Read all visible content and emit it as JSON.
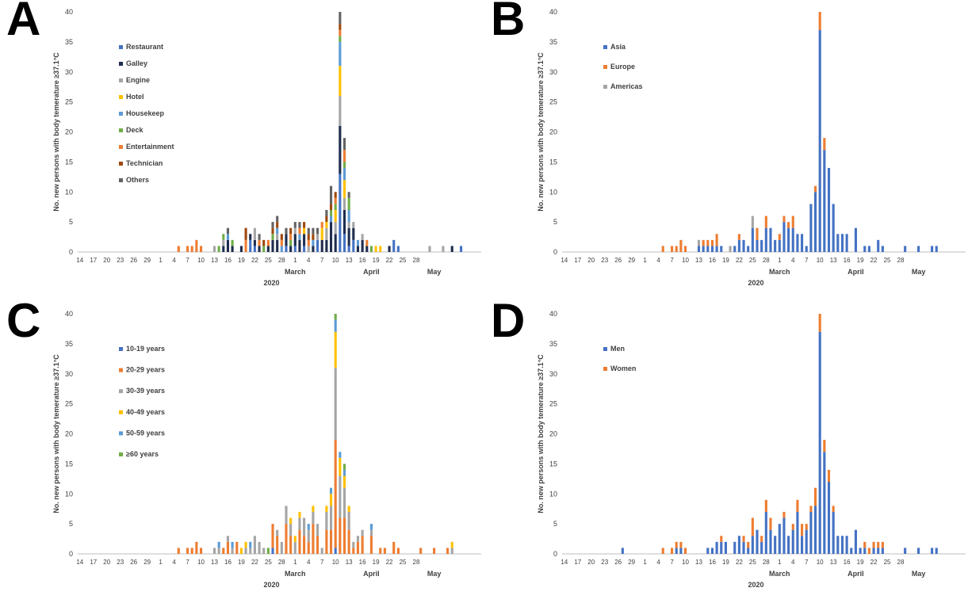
{
  "colors": {
    "blue": "#4472C4",
    "orange": "#ED7D31",
    "gray": "#A5A5A5",
    "yellow": "#FFC000",
    "lightblue": "#5B9BD5",
    "green": "#70AD47",
    "navy": "#1F2D4E",
    "rust": "#9E480E",
    "darkgray": "#636363"
  },
  "chart_data": [
    {
      "panel": "A",
      "type": "bar",
      "stacked": true,
      "ylabel": "No.  new persons with body temerature ≥37.1°C",
      "xlabel": "2020",
      "ylim": [
        0,
        40
      ],
      "yticks": [
        0,
        5,
        10,
        15,
        20,
        25,
        30,
        35,
        40
      ],
      "xticks": [
        "14",
        "17",
        "20",
        "23",
        "26",
        "29",
        "1",
        "4",
        "7",
        "10",
        "13",
        "16",
        "19",
        "22",
        "25",
        "28",
        "1",
        "4",
        "7",
        "10",
        "13",
        "16",
        "19",
        "22",
        "25",
        "28"
      ],
      "months": [
        "March",
        "April",
        "May"
      ],
      "legend": {
        "placement": "left"
      },
      "series": [
        {
          "name": "Restaurant",
          "color": "#4472C4",
          "values": {
            "38": 2,
            "39": 1,
            "46": 1,
            "48": 1,
            "50": 1,
            "53": 2,
            "58": 13,
            "59": 3,
            "60": 1,
            "61": 2,
            "70": 2,
            "71": 1,
            "85": 1
          }
        },
        {
          "name": "Galley",
          "color": "#1F2D4E",
          "values": {
            "32": 1,
            "33": 2,
            "34": 1,
            "36": 1,
            "38": 1,
            "39": 1,
            "40": 1,
            "42": 1,
            "43": 2,
            "44": 2,
            "46": 2,
            "47": 1,
            "48": 2,
            "49": 2,
            "50": 2,
            "52": 1,
            "54": 2,
            "55": 2,
            "56": 5,
            "57": 3,
            "58": 8,
            "59": 4,
            "60": 3,
            "61": 2,
            "62": 1,
            "63": 2,
            "64": 1,
            "69": 1,
            "83": 1
          }
        },
        {
          "name": "Engine",
          "color": "#A5A5A5",
          "values": {
            "30": 1,
            "32": 1,
            "39": 2,
            "44": 1,
            "48": 1,
            "51": 1,
            "53": 1,
            "55": 2,
            "57": 2,
            "58": 5,
            "59": 2,
            "60": 1,
            "61": 1,
            "63": 1,
            "78": 1,
            "81": 1
          }
        },
        {
          "name": "Hotel",
          "color": "#FFC000",
          "values": {
            "50": 1,
            "54": 2,
            "55": 1,
            "57": 2,
            "58": 5,
            "59": 3,
            "66": 1,
            "67": 1
          }
        },
        {
          "name": "Housekeep",
          "color": "#5B9BD5",
          "values": {
            "33": 1,
            "44": 1,
            "45": 1,
            "49": 1,
            "52": 1,
            "56": 1,
            "58": 4,
            "59": 2,
            "60": 2,
            "62": 1
          }
        },
        {
          "name": "Deck",
          "color": "#70AD47",
          "values": {
            "31": 1,
            "32": 1,
            "34": 1,
            "41": 1,
            "43": 1,
            "47": 1,
            "56": 1,
            "57": 1,
            "58": 1,
            "59": 1,
            "60": 2,
            "65": 1
          }
        },
        {
          "name": "Entertainment",
          "color": "#ED7D31",
          "values": {
            "22": 1,
            "24": 1,
            "25": 1,
            "26": 2,
            "27": 1,
            "37": 2,
            "40": 1,
            "42": 1,
            "45": 1,
            "47": 1,
            "49": 1,
            "51": 1,
            "54": 1,
            "57": 1,
            "58": 1,
            "59": 2,
            "64": 1
          }
        },
        {
          "name": "Technician",
          "color": "#9E480E",
          "values": {
            "37": 2,
            "41": 1,
            "43": 1,
            "44": 1,
            "45": 1,
            "47": 1,
            "50": 1,
            "51": 1,
            "52": 1,
            "55": 1,
            "56": 1,
            "57": 1,
            "58": 1
          }
        },
        {
          "name": "Others",
          "color": "#636363",
          "values": {
            "33": 1,
            "40": 1,
            "43": 1,
            "44": 1,
            "46": 1,
            "48": 1,
            "49": 1,
            "51": 1,
            "52": 1,
            "53": 1,
            "55": 1,
            "56": 3,
            "58": 2,
            "59": 2,
            "60": 1
          }
        }
      ]
    },
    {
      "panel": "B",
      "type": "bar",
      "stacked": true,
      "ylabel": "No.  new persons with body temerature ≥37.1°C",
      "xlabel": "2020",
      "ylim": [
        0,
        40
      ],
      "yticks": [
        0,
        5,
        10,
        15,
        20,
        25,
        30,
        35,
        40
      ],
      "xticks": [
        "14",
        "17",
        "20",
        "23",
        "26",
        "29",
        "1",
        "4",
        "7",
        "10",
        "13",
        "16",
        "19",
        "22",
        "25",
        "28",
        "1",
        "4",
        "7",
        "10",
        "13",
        "16",
        "19",
        "22",
        "25",
        "28"
      ],
      "months": [
        "March",
        "April",
        "May"
      ],
      "legend": {
        "placement": "left"
      },
      "series": [
        {
          "name": "Asia",
          "color": "#4472C4",
          "values": {
            "30": 1,
            "31": 1,
            "32": 1,
            "33": 1,
            "34": 1,
            "35": 1,
            "38": 1,
            "39": 2,
            "40": 2,
            "41": 1,
            "42": 4,
            "43": 2,
            "44": 2,
            "45": 4,
            "46": 4,
            "47": 2,
            "48": 2,
            "49": 5,
            "50": 4,
            "51": 4,
            "52": 3,
            "53": 3,
            "54": 1,
            "55": 8,
            "56": 10,
            "57": 37,
            "58": 17,
            "59": 14,
            "60": 8,
            "61": 3,
            "62": 3,
            "63": 3,
            "65": 4,
            "67": 1,
            "68": 1,
            "70": 2,
            "71": 1,
            "76": 1,
            "79": 1,
            "82": 1,
            "83": 1
          }
        },
        {
          "name": "Europe",
          "color": "#ED7D31",
          "values": {
            "22": 1,
            "24": 1,
            "25": 1,
            "26": 2,
            "27": 1,
            "31": 1,
            "32": 1,
            "33": 1,
            "34": 2,
            "39": 1,
            "43": 2,
            "45": 2,
            "48": 1,
            "49": 1,
            "50": 1,
            "51": 2,
            "56": 1,
            "57": 3,
            "58": 2
          }
        },
        {
          "name": "Americas",
          "color": "#A5A5A5",
          "values": {
            "30": 1,
            "37": 1,
            "42": 2
          }
        }
      ]
    },
    {
      "panel": "C",
      "type": "bar",
      "stacked": true,
      "ylabel": "No.  new persons with body temerature ≥37.1°C",
      "xlabel": "2020",
      "ylim": [
        0,
        40
      ],
      "yticks": [
        0,
        5,
        10,
        15,
        20,
        25,
        30,
        35,
        40
      ],
      "xticks": [
        "14",
        "17",
        "20",
        "23",
        "26",
        "29",
        "1",
        "4",
        "7",
        "10",
        "13",
        "16",
        "19",
        "22",
        "25",
        "28",
        "1",
        "4",
        "7",
        "10",
        "13",
        "16",
        "19",
        "22",
        "25",
        "28"
      ],
      "months": [
        "March",
        "April",
        "May"
      ],
      "legend": {
        "placement": "left"
      },
      "series": [
        {
          "name": "10-19 years",
          "color": "#4472C4",
          "values": {
            "43": 1,
            "57": 1
          }
        },
        {
          "name": "20-29 years",
          "color": "#ED7D31",
          "values": {
            "22": 1,
            "24": 1,
            "25": 1,
            "26": 2,
            "27": 1,
            "32": 1,
            "33": 2,
            "35": 2,
            "43": 4,
            "44": 3,
            "46": 5,
            "47": 3,
            "49": 4,
            "50": 3,
            "51": 2,
            "52": 5,
            "53": 3,
            "55": 4,
            "56": 4,
            "57": 18,
            "58": 6,
            "59": 6,
            "60": 4,
            "61": 1,
            "62": 2,
            "63": 3,
            "65": 3,
            "67": 1,
            "68": 1,
            "70": 2,
            "71": 1,
            "76": 1,
            "79": 1,
            "82": 1
          }
        },
        {
          "name": "30-39 years",
          "color": "#A5A5A5",
          "values": {
            "30": 1,
            "31": 1,
            "33": 1,
            "34": 1,
            "37": 1,
            "38": 1,
            "39": 3,
            "40": 2,
            "41": 1,
            "44": 1,
            "45": 2,
            "46": 3,
            "47": 2,
            "48": 2,
            "49": 2,
            "50": 3,
            "51": 2,
            "52": 2,
            "53": 2,
            "54": 1,
            "55": 3,
            "56": 4,
            "57": 12,
            "58": 7,
            "59": 5,
            "60": 3,
            "61": 1,
            "62": 1,
            "63": 1,
            "65": 1,
            "83": 1
          }
        },
        {
          "name": "40-49 years",
          "color": "#FFC000",
          "values": {
            "36": 1,
            "37": 1,
            "47": 1,
            "48": 1,
            "49": 1,
            "52": 1,
            "55": 1,
            "56": 2,
            "57": 6,
            "58": 3,
            "59": 2,
            "60": 1,
            "83": 1
          }
        },
        {
          "name": "50-59 years",
          "color": "#5B9BD5",
          "values": {
            "31": 1,
            "34": 1,
            "38": 1,
            "51": 1,
            "56": 1,
            "57": 2,
            "58": 1,
            "59": 1,
            "65": 1
          }
        },
        {
          "name": "≥60 years",
          "color": "#70AD47",
          "values": {
            "42": 1,
            "57": 1,
            "59": 1
          }
        }
      ]
    },
    {
      "panel": "D",
      "type": "bar",
      "stacked": true,
      "ylabel": "No.  new persons with body temerature ≥37.1°C",
      "xlabel": "2020",
      "ylim": [
        0,
        40
      ],
      "yticks": [
        0,
        5,
        10,
        15,
        20,
        25,
        30,
        35,
        40
      ],
      "xticks": [
        "14",
        "17",
        "20",
        "23",
        "26",
        "29",
        "1",
        "4",
        "7",
        "10",
        "13",
        "16",
        "19",
        "22",
        "25",
        "28",
        "1",
        "4",
        "7",
        "10",
        "13",
        "16",
        "19",
        "22",
        "25",
        "28"
      ],
      "months": [
        "March",
        "April",
        "May"
      ],
      "legend": {
        "placement": "left"
      },
      "series": [
        {
          "name": "Men",
          "color": "#4472C4",
          "values": {
            "13": 1,
            "25": 1,
            "26": 1,
            "32": 1,
            "33": 1,
            "34": 2,
            "35": 2,
            "36": 2,
            "38": 2,
            "39": 3,
            "40": 2,
            "41": 1,
            "42": 3,
            "43": 4,
            "44": 2,
            "45": 7,
            "46": 4,
            "47": 3,
            "48": 5,
            "49": 6,
            "50": 3,
            "51": 4,
            "52": 7,
            "53": 3,
            "54": 4,
            "55": 7,
            "56": 8,
            "57": 37,
            "58": 17,
            "59": 12,
            "60": 7,
            "61": 3,
            "62": 3,
            "63": 3,
            "64": 1,
            "65": 4,
            "66": 1,
            "67": 1,
            "69": 1,
            "70": 1,
            "71": 1,
            "76": 1,
            "79": 1,
            "82": 1,
            "83": 1
          }
        },
        {
          "name": "Women",
          "color": "#ED7D31",
          "values": {
            "22": 1,
            "24": 1,
            "25": 1,
            "26": 1,
            "27": 1,
            "35": 1,
            "40": 1,
            "41": 1,
            "42": 3,
            "44": 1,
            "45": 2,
            "46": 2,
            "49": 1,
            "51": 1,
            "52": 2,
            "53": 2,
            "54": 1,
            "55": 1,
            "56": 3,
            "57": 3,
            "58": 2,
            "59": 2,
            "60": 1,
            "67": 1,
            "68": 1,
            "69": 1,
            "70": 1,
            "71": 1
          }
        }
      ]
    }
  ]
}
